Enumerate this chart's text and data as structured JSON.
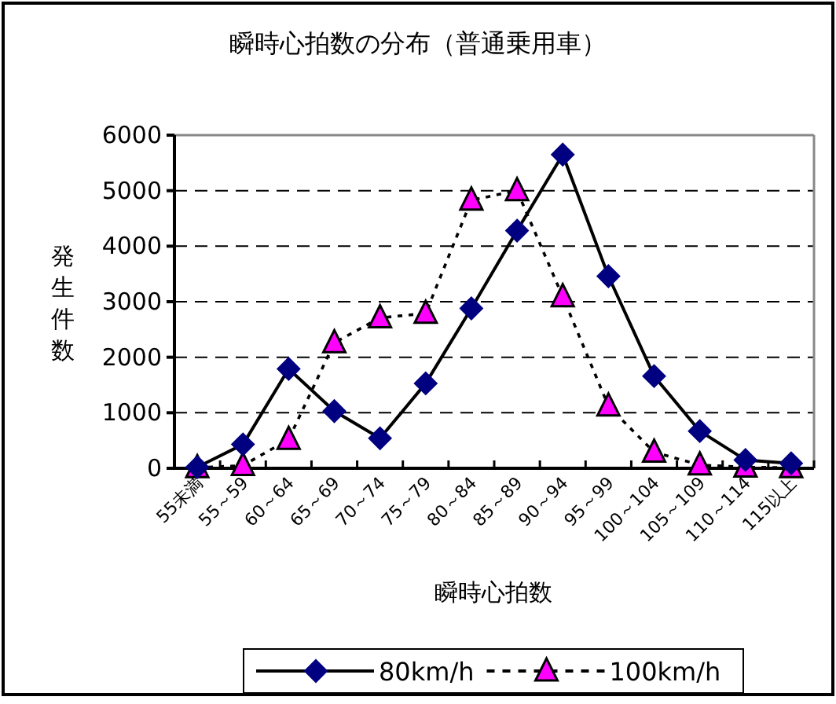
{
  "chart_data": {
    "type": "line",
    "title": "瞬時心拍数の分布（普通乗用車）",
    "xlabel": "瞬時心拍数",
    "ylabel": "発生件数",
    "categories": [
      "55未満",
      "55～59",
      "60～64",
      "65～69",
      "70～74",
      "75～79",
      "80～84",
      "85～89",
      "90～94",
      "95～99",
      "100～104",
      "105～109",
      "110～114",
      "115以上"
    ],
    "series": [
      {
        "name": "80km/h",
        "color": "#000080",
        "marker": "diamond",
        "line_style": "solid",
        "values": [
          20,
          430,
          1790,
          1030,
          540,
          1530,
          2880,
          4280,
          5650,
          3460,
          1660,
          670,
          150,
          90
        ]
      },
      {
        "name": "100km/h",
        "color": "#ff00ff",
        "marker": "triangle",
        "line_style": "dotted",
        "values": [
          10,
          50,
          520,
          2260,
          2710,
          2790,
          4830,
          5000,
          3090,
          1120,
          290,
          60,
          20,
          10
        ]
      }
    ],
    "ylim": [
      0,
      6000
    ],
    "yticks": [
      0,
      1000,
      2000,
      3000,
      4000,
      5000,
      6000
    ],
    "grid": "y",
    "legend": "bottom"
  }
}
